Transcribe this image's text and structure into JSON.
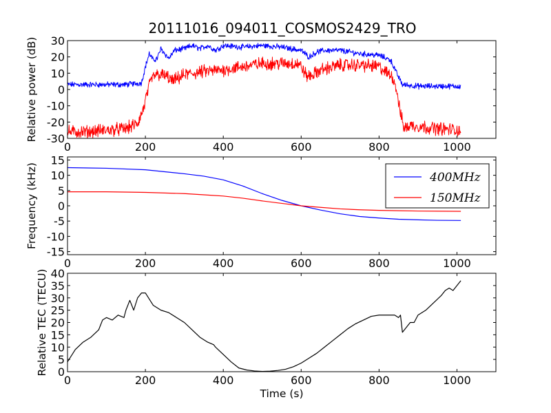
{
  "chart_data": [
    {
      "type": "line",
      "title": "20111016_094011_COSMOS2429_TRO",
      "ylabel": "Relative power (dB)",
      "xlim": [
        0,
        1100
      ],
      "ylim": [
        -30,
        30
      ],
      "xticks": [
        0,
        200,
        400,
        600,
        800,
        1000
      ],
      "yticks": [
        -30,
        -20,
        -10,
        0,
        10,
        20,
        30
      ],
      "series": [
        {
          "color": "#0000ff",
          "x": [
            0,
            50,
            100,
            150,
            190,
            200,
            210,
            220,
            230,
            240,
            250,
            260,
            275,
            300,
            320,
            340,
            360,
            380,
            400,
            450,
            500,
            550,
            600,
            620,
            640,
            660,
            700,
            750,
            800,
            830,
            845,
            860,
            900,
            1000,
            1010
          ],
          "y": [
            3,
            3,
            3,
            3,
            4,
            14,
            22,
            18,
            19,
            25,
            22,
            19,
            24,
            25,
            27,
            25,
            27,
            24,
            27,
            26,
            27,
            26,
            24,
            20,
            23,
            24,
            24,
            22,
            21,
            18,
            10,
            3,
            2,
            2,
            2
          ]
        },
        {
          "color": "#ff0000",
          "x": [
            0,
            50,
            100,
            150,
            180,
            195,
            205,
            215,
            225,
            240,
            255,
            270,
            300,
            350,
            400,
            450,
            500,
            550,
            590,
            600,
            615,
            630,
            650,
            700,
            750,
            800,
            820,
            835,
            845,
            855,
            865,
            880,
            950,
            1010
          ],
          "y": [
            -26,
            -26,
            -25,
            -24,
            -21,
            -12,
            -2,
            6,
            9,
            9,
            8,
            5,
            9,
            11,
            12,
            14,
            16,
            16,
            16,
            14,
            8,
            9,
            12,
            15,
            15,
            14,
            10,
            8,
            0,
            -15,
            -24,
            -22,
            -24,
            -25
          ]
        }
      ]
    },
    {
      "type": "line",
      "ylabel": "Frequency (kHz)",
      "xlim": [
        0,
        1100
      ],
      "ylim": [
        -16,
        16
      ],
      "xticks": [
        0,
        200,
        400,
        600,
        800,
        1000
      ],
      "yticks": [
        -15,
        -10,
        -5,
        0,
        5,
        10,
        15
      ],
      "legend_position": "upper-right",
      "series": [
        {
          "name": "400MHz",
          "color": "#0000ff",
          "x": [
            0,
            100,
            200,
            300,
            350,
            400,
            450,
            500,
            550,
            600,
            650,
            700,
            750,
            800,
            850,
            900,
            950,
            1010
          ],
          "y": [
            12.5,
            12.3,
            11.8,
            10.5,
            9.7,
            8.5,
            6.5,
            4.0,
            1.8,
            0.0,
            -1.4,
            -2.6,
            -3.5,
            -4.0,
            -4.4,
            -4.6,
            -4.75,
            -4.8
          ]
        },
        {
          "name": "150MHz",
          "color": "#ff0000",
          "x": [
            0,
            100,
            200,
            300,
            350,
            400,
            450,
            500,
            550,
            600,
            650,
            700,
            750,
            800,
            850,
            900,
            950,
            1010
          ],
          "y": [
            4.6,
            4.6,
            4.4,
            4.0,
            3.6,
            3.2,
            2.5,
            1.6,
            0.8,
            0.0,
            -0.5,
            -1.0,
            -1.3,
            -1.5,
            -1.6,
            -1.7,
            -1.75,
            -1.8
          ]
        }
      ]
    },
    {
      "type": "line",
      "ylabel": "Relative TEC (TECU)",
      "xlabel": "Time (s)",
      "xlim": [
        0,
        1100
      ],
      "ylim": [
        0,
        40
      ],
      "xticks": [
        0,
        200,
        400,
        600,
        800,
        1000
      ],
      "yticks": [
        0,
        5,
        10,
        15,
        20,
        25,
        30,
        35,
        40
      ],
      "series": [
        {
          "color": "#000000",
          "x": [
            0,
            20,
            40,
            60,
            80,
            90,
            100,
            115,
            130,
            145,
            150,
            160,
            170,
            180,
            190,
            200,
            220,
            240,
            260,
            280,
            300,
            320,
            340,
            360,
            375,
            380,
            400,
            420,
            440,
            460,
            480,
            500,
            520,
            540,
            560,
            580,
            600,
            620,
            640,
            660,
            680,
            700,
            720,
            740,
            760,
            780,
            800,
            820,
            840,
            850,
            855,
            860,
            870,
            880,
            890,
            900,
            920,
            940,
            960,
            970,
            980,
            990,
            1000,
            1010
          ],
          "y": [
            4,
            9,
            12,
            14,
            17,
            21,
            22,
            21,
            23,
            22,
            25,
            29,
            25,
            30,
            32,
            32,
            27,
            25,
            24,
            22,
            20,
            17,
            14,
            12,
            11,
            10,
            7,
            4,
            1.5,
            0.7,
            0.3,
            0.1,
            0.2,
            0.5,
            1.0,
            2.0,
            3.5,
            5.5,
            7.5,
            10,
            12.5,
            15,
            17.5,
            19.5,
            21,
            22.5,
            23,
            23,
            23,
            22,
            23,
            16,
            18,
            20,
            20,
            23,
            25,
            28,
            31,
            33,
            34,
            33,
            35,
            37
          ]
        }
      ]
    }
  ]
}
